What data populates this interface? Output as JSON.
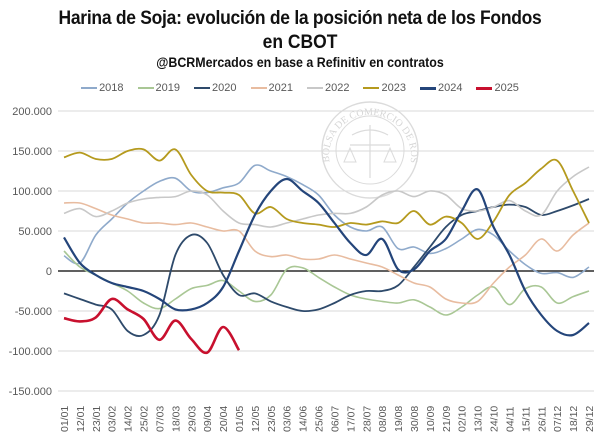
{
  "header": {
    "title_line1": "Harina de Soja: evolución de la posición neta de los Fondos",
    "title_line2": "en CBOT",
    "subtitle": "@BCRMercados en base a Refinitiv en contratos"
  },
  "watermark": "BOLSA DE COMERCIO DE ROSARIO",
  "chart_data": {
    "type": "line",
    "title": "Harina de Soja: evolución de la posición neta de los Fondos en CBOT",
    "subtitle": "@BCRMercados en base a Refinitiv en contratos",
    "xlabel": "",
    "ylabel": "",
    "ylim": [
      -150000,
      200000
    ],
    "yticks": [
      200000,
      150000,
      100000,
      50000,
      0,
      -50000,
      -100000,
      -150000
    ],
    "ytick_labels": [
      "200.000",
      "150.000",
      "100.000",
      "50.000",
      "0",
      "-50.000",
      "-100.000",
      "-150.000"
    ],
    "grid": true,
    "legend_position": "top",
    "x": [
      "01/01",
      "12/01",
      "23/01",
      "03/02",
      "14/02",
      "25/02",
      "07/03",
      "18/03",
      "29/03",
      "09/04",
      "20/04",
      "01/05",
      "12/05",
      "23/05",
      "03/06",
      "14/06",
      "25/06",
      "06/07",
      "17/07",
      "28/07",
      "08/08",
      "19/08",
      "30/08",
      "10/09",
      "21/09",
      "02/10",
      "13/10",
      "24/10",
      "04/11",
      "15/11",
      "26/11",
      "07/12",
      "18/12",
      "29/12"
    ],
    "series": [
      {
        "name": "2018",
        "color": "#8FAACB",
        "width": 1.6,
        "values": [
          19000,
          10000,
          45000,
          65000,
          85000,
          100000,
          112000,
          116000,
          100000,
          98000,
          104000,
          110000,
          132000,
          125000,
          118000,
          108000,
          95000,
          70000,
          55000,
          50000,
          55000,
          28000,
          30000,
          22000,
          28000,
          40000,
          52000,
          45000,
          25000,
          8000,
          -3000,
          -2000,
          -8000,
          5000
        ]
      },
      {
        "name": "2019",
        "color": "#A9C795",
        "width": 1.6,
        "values": [
          25000,
          5000,
          -5000,
          -15000,
          -25000,
          -40000,
          -47000,
          -35000,
          -22000,
          -18000,
          -12000,
          -25000,
          -38000,
          -30000,
          2000,
          4000,
          -8000,
          -20000,
          -30000,
          -35000,
          -38000,
          -40000,
          -36000,
          -45000,
          -55000,
          -45000,
          -30000,
          -20000,
          -42000,
          -22000,
          -20000,
          -40000,
          -32000,
          -25000
        ]
      },
      {
        "name": "2020",
        "color": "#2E4A6B",
        "width": 1.8,
        "values": [
          -28000,
          -35000,
          -42000,
          -48000,
          -75000,
          -80000,
          -55000,
          20000,
          45000,
          35000,
          -5000,
          -30000,
          -28000,
          -38000,
          -45000,
          -50000,
          -48000,
          -40000,
          -30000,
          -25000,
          -25000,
          -18000,
          5000,
          30000,
          55000,
          70000,
          75000,
          80000,
          83000,
          80000,
          70000,
          75000,
          82000,
          90000
        ]
      },
      {
        "name": "2021",
        "color": "#E8BCA0",
        "width": 1.6,
        "values": [
          85000,
          85000,
          78000,
          70000,
          65000,
          60000,
          60000,
          58000,
          60000,
          55000,
          50000,
          50000,
          25000,
          18000,
          20000,
          15000,
          15000,
          20000,
          15000,
          10000,
          5000,
          -5000,
          -15000,
          -20000,
          -35000,
          -40000,
          -38000,
          -15000,
          5000,
          20000,
          40000,
          25000,
          45000,
          60000
        ]
      },
      {
        "name": "2022",
        "color": "#C8C8C8",
        "width": 1.6,
        "values": [
          72000,
          78000,
          68000,
          75000,
          85000,
          90000,
          92000,
          93000,
          100000,
          95000,
          75000,
          60000,
          58000,
          55000,
          60000,
          65000,
          70000,
          72000,
          72000,
          80000,
          95000,
          100000,
          93000,
          100000,
          95000,
          78000,
          75000,
          80000,
          88000,
          75000,
          70000,
          100000,
          118000,
          130000
        ]
      },
      {
        "name": "2023",
        "color": "#B59A1E",
        "width": 1.8,
        "values": [
          142000,
          148000,
          140000,
          140000,
          150000,
          152000,
          138000,
          152000,
          120000,
          100000,
          98000,
          95000,
          72000,
          80000,
          65000,
          60000,
          58000,
          55000,
          60000,
          58000,
          62000,
          60000,
          75000,
          58000,
          68000,
          60000,
          40000,
          62000,
          95000,
          110000,
          128000,
          138000,
          100000,
          60000
        ]
      },
      {
        "name": "2024",
        "color": "#24457A",
        "width": 2.2,
        "values": [
          42000,
          10000,
          -5000,
          -15000,
          -20000,
          -25000,
          -35000,
          -48000,
          -48000,
          -40000,
          -20000,
          25000,
          70000,
          100000,
          115000,
          100000,
          85000,
          60000,
          35000,
          20000,
          40000,
          2000,
          2000,
          25000,
          40000,
          75000,
          102000,
          55000,
          20000,
          -25000,
          -55000,
          -75000,
          -80000,
          -65000
        ]
      },
      {
        "name": "2025",
        "color": "#C8102E",
        "width": 2.6,
        "values": [
          -59000,
          -63000,
          -58000,
          -35000,
          -48000,
          -60000,
          -86000,
          -62000,
          -85000,
          -102000,
          -70000,
          -99000
        ]
      }
    ]
  }
}
